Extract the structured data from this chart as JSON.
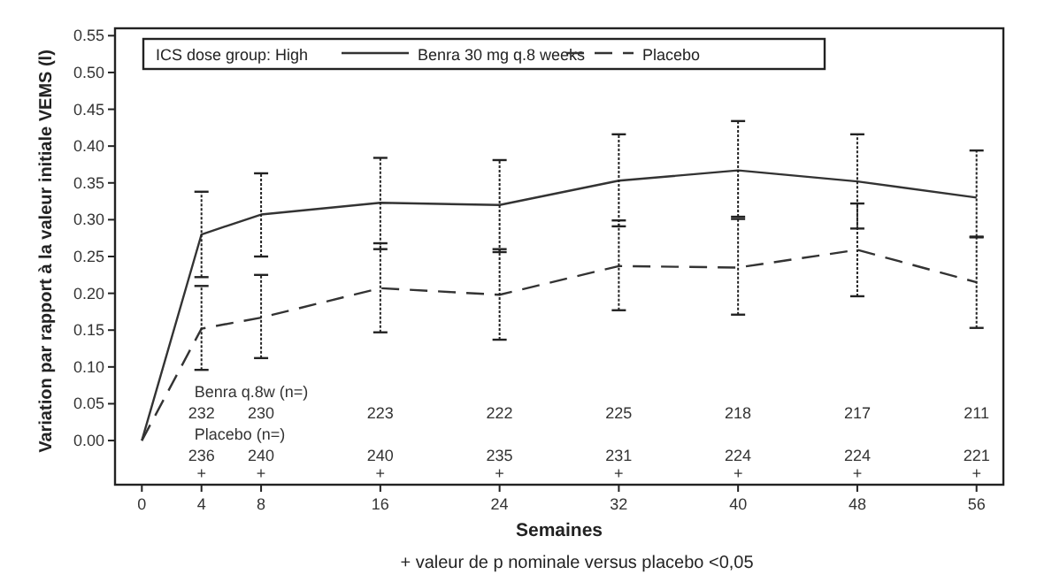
{
  "chart_data": {
    "type": "line",
    "xlabel": "Semaines",
    "ylabel": "Variation par rapport à la valeur initiale VEMS (l)",
    "legend_title": "ICS dose group: High",
    "legend": "top",
    "grid": false,
    "marker": "none",
    "x": [
      0,
      4,
      8,
      16,
      24,
      32,
      40,
      48,
      56
    ],
    "xlim": [
      -1.8,
      57.8
    ],
    "xticks": [
      0,
      4,
      8,
      16,
      24,
      32,
      40,
      48,
      56
    ],
    "ylim": [
      -0.06,
      0.56
    ],
    "yticks": [
      {
        "value": 0,
        "label": "0.00"
      },
      {
        "value": 0.05,
        "label": "0.05"
      },
      {
        "value": 0.1,
        "label": "0.10"
      },
      {
        "value": 0.15,
        "label": "0.15"
      },
      {
        "value": 0.2,
        "label": "0.20"
      },
      {
        "value": 0.25,
        "label": "0.25"
      },
      {
        "value": 0.3,
        "label": "0.30"
      },
      {
        "value": 0.35,
        "label": "0.35"
      },
      {
        "value": 0.4,
        "label": "0.40"
      },
      {
        "value": 0.45,
        "label": "0.45"
      },
      {
        "value": 0.5,
        "label": "0.50"
      },
      {
        "value": 0.55,
        "label": "0.55"
      }
    ],
    "series": [
      {
        "name": "Benra 30 mg q.8 weeks",
        "color": "#333333",
        "line_style": "solid",
        "values": [
          0,
          0.28,
          0.307,
          0.323,
          0.32,
          0.353,
          0.367,
          0.352,
          0.33
        ],
        "errors": [
          null,
          [
            0.222,
            0.338
          ],
          [
            0.25,
            0.363
          ],
          [
            0.26,
            0.384
          ],
          [
            0.256,
            0.381
          ],
          [
            0.291,
            0.416
          ],
          [
            0.304,
            0.434
          ],
          [
            0.288,
            0.416
          ],
          [
            0.277,
            0.394
          ]
        ]
      },
      {
        "name": "Placebo",
        "color": "#333333",
        "line_style": "dashed",
        "values": [
          0,
          0.152,
          0.167,
          0.207,
          0.198,
          0.237,
          0.235,
          0.259,
          0.215
        ],
        "errors": [
          null,
          [
            0.096,
            0.21
          ],
          [
            0.112,
            0.225
          ],
          [
            0.147,
            0.268
          ],
          [
            0.137,
            0.26
          ],
          [
            0.177,
            0.299
          ],
          [
            0.171,
            0.301
          ],
          [
            0.196,
            0.322
          ],
          [
            0.153,
            0.276
          ]
        ]
      }
    ],
    "annotations": [
      "Benra q.8w (n=)",
      "232",
      "230",
      "223",
      "222",
      "225",
      "218",
      "217",
      "211",
      "Placebo (n=)",
      "236",
      "240",
      "240",
      "235",
      "231",
      "224",
      "224",
      "221",
      "+",
      "+",
      "+",
      "+",
      "+",
      "+",
      "+",
      "+",
      "+ valeur de p nominale versus placebo <0,05"
    ]
  }
}
